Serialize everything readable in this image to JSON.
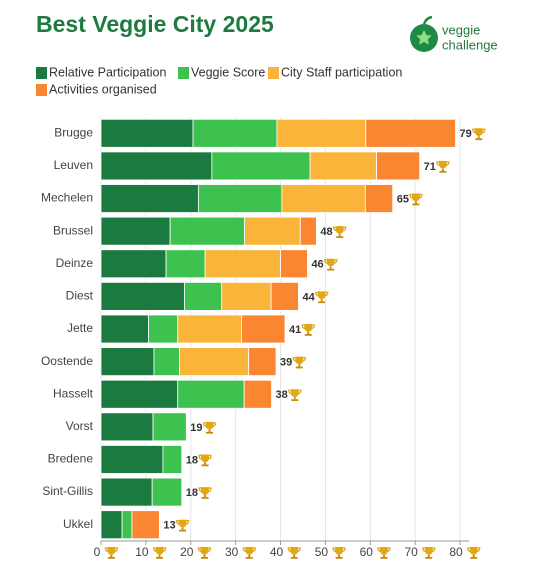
{
  "logo": {
    "line1": "veggie",
    "line2": "challenge"
  },
  "chart_data": {
    "type": "stacked-barh",
    "title": "Best Veggie City 2025",
    "categories": [
      "Brugge",
      "Leuven",
      "Mechelen",
      "Brussel",
      "Deinze",
      "Diest",
      "Jette",
      "Oostende",
      "Hasselt",
      "Vorst",
      "Bredene",
      "Sint-Gillis",
      "Ukkel"
    ],
    "series": [
      {
        "name": "Relative Participation",
        "color": "#1b7a3f",
        "values": [
          20.5,
          24.7,
          21.7,
          15.4,
          14.5,
          18.6,
          10.6,
          11.8,
          17.1,
          11.6,
          13.8,
          11.4,
          4.7
        ]
      },
      {
        "name": "Veggie Score",
        "color": "#3ec24f",
        "values": [
          18.7,
          21.9,
          18.6,
          16.6,
          8.7,
          8.3,
          6.5,
          5.7,
          14.8,
          7.4,
          4.2,
          6.6,
          2.2
        ]
      },
      {
        "name": "City Staff participation",
        "color": "#fbb43a",
        "values": [
          19.8,
          14.8,
          18.6,
          12.4,
          16.8,
          11.0,
          14.2,
          15.4,
          0,
          0,
          0,
          0,
          0
        ]
      },
      {
        "name": "Activities organised",
        "color": "#fb8632",
        "values": [
          20,
          9.6,
          6.1,
          3.6,
          6.0,
          6.1,
          9.7,
          6.1,
          6.1,
          0,
          0,
          0,
          6.1
        ]
      }
    ],
    "totals": [
      79,
      71,
      65,
      48,
      46,
      44,
      41,
      39,
      38,
      19,
      18,
      18,
      13
    ],
    "xlim": [
      0,
      82
    ],
    "xticks": [
      0,
      10,
      20,
      30,
      40,
      50,
      60,
      70,
      80
    ],
    "grid": true,
    "legend": "top-left"
  }
}
